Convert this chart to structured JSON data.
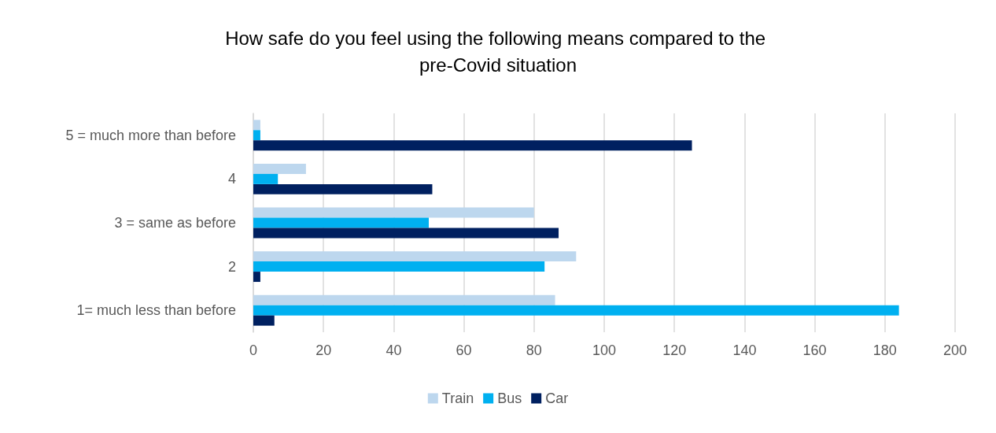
{
  "chart_data": {
    "type": "bar",
    "orientation": "horizontal",
    "title": "How safe do you feel using the following means compared to the pre-Covid situation",
    "categories": [
      "5 = much more than before",
      "4",
      "3 = same as before",
      "2",
      "1= much less than before"
    ],
    "series": [
      {
        "name": "Train",
        "color": "#bdd7ee",
        "values": [
          2,
          15,
          80,
          92,
          86
        ]
      },
      {
        "name": "Bus",
        "color": "#00b0f0",
        "values": [
          2,
          7,
          50,
          83,
          184
        ]
      },
      {
        "name": "Car",
        "color": "#002060",
        "values": [
          125,
          51,
          87,
          2,
          6
        ]
      }
    ],
    "xlim": [
      0,
      200
    ],
    "xticks": [
      0,
      20,
      40,
      60,
      80,
      100,
      120,
      140,
      160,
      180,
      200
    ],
    "grid": "x",
    "legend": "bottom"
  }
}
